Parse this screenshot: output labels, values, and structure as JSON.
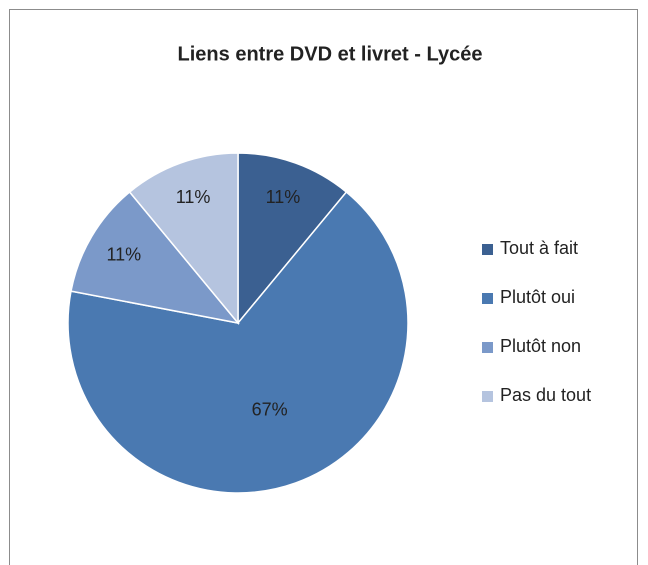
{
  "chart_data": {
    "type": "pie",
    "title": "Liens entre DVD et livret - Lycée",
    "categories": [
      "Tout à fait",
      "Plutôt oui",
      "Plutôt non",
      "Pas du tout"
    ],
    "values": [
      11,
      67,
      11,
      11
    ],
    "value_labels": [
      "11%",
      "67%",
      "11%",
      "11%"
    ],
    "colors": [
      "#3b6091",
      "#4a79b1",
      "#7b99c9",
      "#b5c4df"
    ],
    "legend": "right"
  }
}
